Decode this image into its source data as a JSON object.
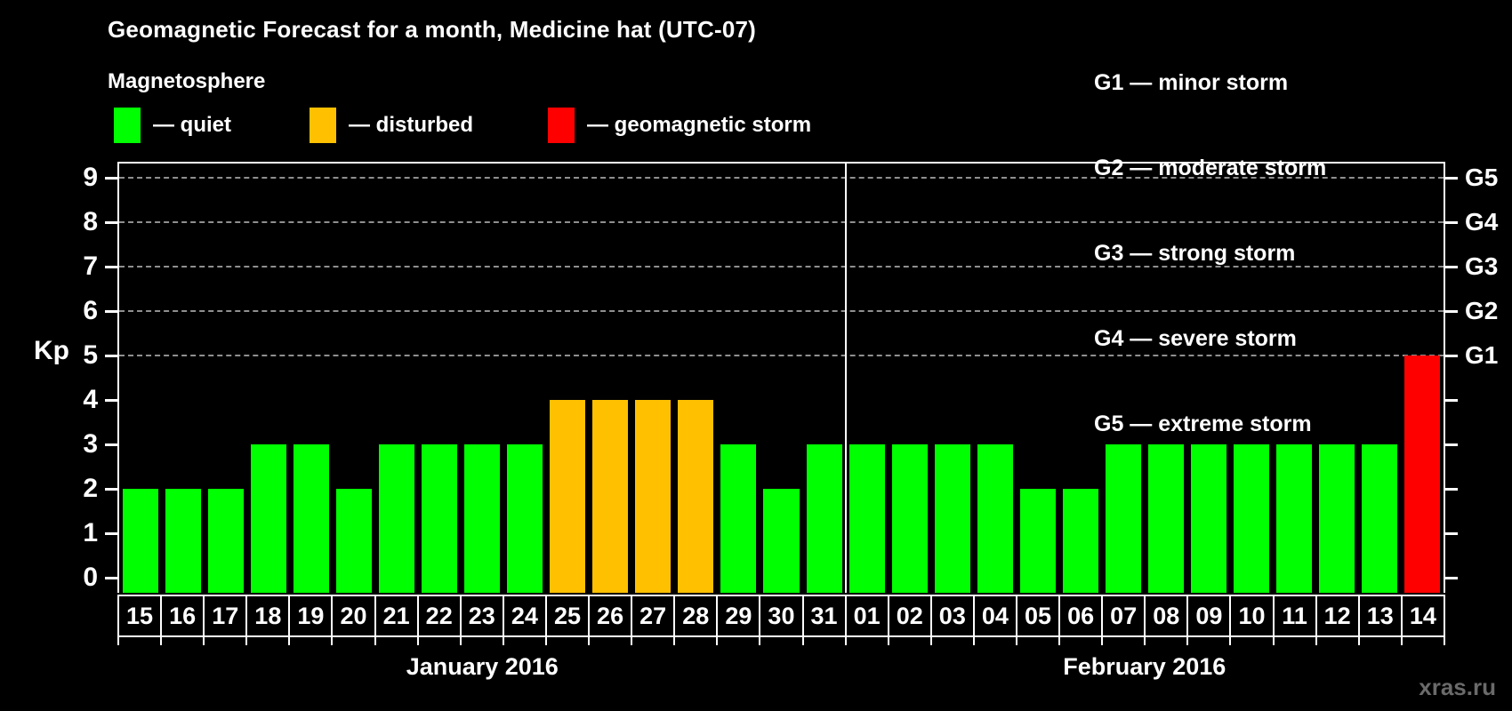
{
  "header": {
    "title": "Geomagnetic Forecast for a month, Medicine hat (UTC-07)"
  },
  "legend": {
    "heading": "Magnetosphere",
    "items": [
      {
        "key": "quiet",
        "label": "— quiet",
        "color": "#00FF00",
        "x": 128
      },
      {
        "key": "disturbed",
        "label": "— disturbed",
        "color": "#FFC000",
        "x": 348
      },
      {
        "key": "storm",
        "label": "— geomagnetic storm",
        "color": "#FF0000",
        "x": 616
      }
    ]
  },
  "g_legend": {
    "items": [
      "G1 — minor storm",
      "G2 — moderate storm",
      "G3 — strong storm",
      "G4 — severe storm",
      "G5 — extreme storm"
    ]
  },
  "watermark": "xras.ru",
  "chart_data": {
    "type": "bar",
    "title": "Geomagnetic Forecast for a month, Medicine hat (UTC-07)",
    "ylabel": "Kp",
    "ylim": [
      0,
      9.4
    ],
    "y_ticks": [
      0,
      1,
      2,
      3,
      4,
      5,
      6,
      7,
      8,
      9
    ],
    "gridlines_at": [
      5,
      6,
      7,
      8,
      9
    ],
    "grid": "dashed",
    "right_axis_labels": [
      {
        "kp": 5,
        "label": "G1"
      },
      {
        "kp": 6,
        "label": "G2"
      },
      {
        "kp": 7,
        "label": "G3"
      },
      {
        "kp": 8,
        "label": "G4"
      },
      {
        "kp": 9,
        "label": "G5"
      }
    ],
    "status_colors": {
      "quiet": "#00FF00",
      "disturbed": "#FFC000",
      "storm": "#FF0000"
    },
    "months": [
      {
        "label": "January 2016",
        "days_count": 17
      },
      {
        "label": "February 2016",
        "days_count": 14
      }
    ],
    "categories": [
      "15",
      "16",
      "17",
      "18",
      "19",
      "20",
      "21",
      "22",
      "23",
      "24",
      "25",
      "26",
      "27",
      "28",
      "29",
      "30",
      "31",
      "01",
      "02",
      "03",
      "04",
      "05",
      "06",
      "07",
      "08",
      "09",
      "10",
      "11",
      "12",
      "13",
      "14"
    ],
    "days": [
      {
        "day": "15",
        "month": "January 2016",
        "kp": 2,
        "status": "quiet"
      },
      {
        "day": "16",
        "month": "January 2016",
        "kp": 2,
        "status": "quiet"
      },
      {
        "day": "17",
        "month": "January 2016",
        "kp": 2,
        "status": "quiet"
      },
      {
        "day": "18",
        "month": "January 2016",
        "kp": 3,
        "status": "quiet"
      },
      {
        "day": "19",
        "month": "January 2016",
        "kp": 3,
        "status": "quiet"
      },
      {
        "day": "20",
        "month": "January 2016",
        "kp": 2,
        "status": "quiet"
      },
      {
        "day": "21",
        "month": "January 2016",
        "kp": 3,
        "status": "quiet"
      },
      {
        "day": "22",
        "month": "January 2016",
        "kp": 3,
        "status": "quiet"
      },
      {
        "day": "23",
        "month": "January 2016",
        "kp": 3,
        "status": "quiet"
      },
      {
        "day": "24",
        "month": "January 2016",
        "kp": 3,
        "status": "quiet"
      },
      {
        "day": "25",
        "month": "January 2016",
        "kp": 4,
        "status": "disturbed"
      },
      {
        "day": "26",
        "month": "January 2016",
        "kp": 4,
        "status": "disturbed"
      },
      {
        "day": "27",
        "month": "January 2016",
        "kp": 4,
        "status": "disturbed"
      },
      {
        "day": "28",
        "month": "January 2016",
        "kp": 4,
        "status": "disturbed"
      },
      {
        "day": "29",
        "month": "January 2016",
        "kp": 3,
        "status": "quiet"
      },
      {
        "day": "30",
        "month": "January 2016",
        "kp": 2,
        "status": "quiet"
      },
      {
        "day": "31",
        "month": "January 2016",
        "kp": 3,
        "status": "quiet"
      },
      {
        "day": "01",
        "month": "February 2016",
        "kp": 3,
        "status": "quiet"
      },
      {
        "day": "02",
        "month": "February 2016",
        "kp": 3,
        "status": "quiet"
      },
      {
        "day": "03",
        "month": "February 2016",
        "kp": 3,
        "status": "quiet"
      },
      {
        "day": "04",
        "month": "February 2016",
        "kp": 3,
        "status": "quiet"
      },
      {
        "day": "05",
        "month": "February 2016",
        "kp": 2,
        "status": "quiet"
      },
      {
        "day": "06",
        "month": "February 2016",
        "kp": 2,
        "status": "quiet"
      },
      {
        "day": "07",
        "month": "February 2016",
        "kp": 3,
        "status": "quiet"
      },
      {
        "day": "08",
        "month": "February 2016",
        "kp": 3,
        "status": "quiet"
      },
      {
        "day": "09",
        "month": "February 2016",
        "kp": 3,
        "status": "quiet"
      },
      {
        "day": "10",
        "month": "February 2016",
        "kp": 3,
        "status": "quiet"
      },
      {
        "day": "11",
        "month": "February 2016",
        "kp": 3,
        "status": "quiet"
      },
      {
        "day": "12",
        "month": "February 2016",
        "kp": 3,
        "status": "quiet"
      },
      {
        "day": "13",
        "month": "February 2016",
        "kp": 3,
        "status": "quiet"
      },
      {
        "day": "14",
        "month": "February 2016",
        "kp": 5,
        "status": "storm"
      }
    ]
  }
}
